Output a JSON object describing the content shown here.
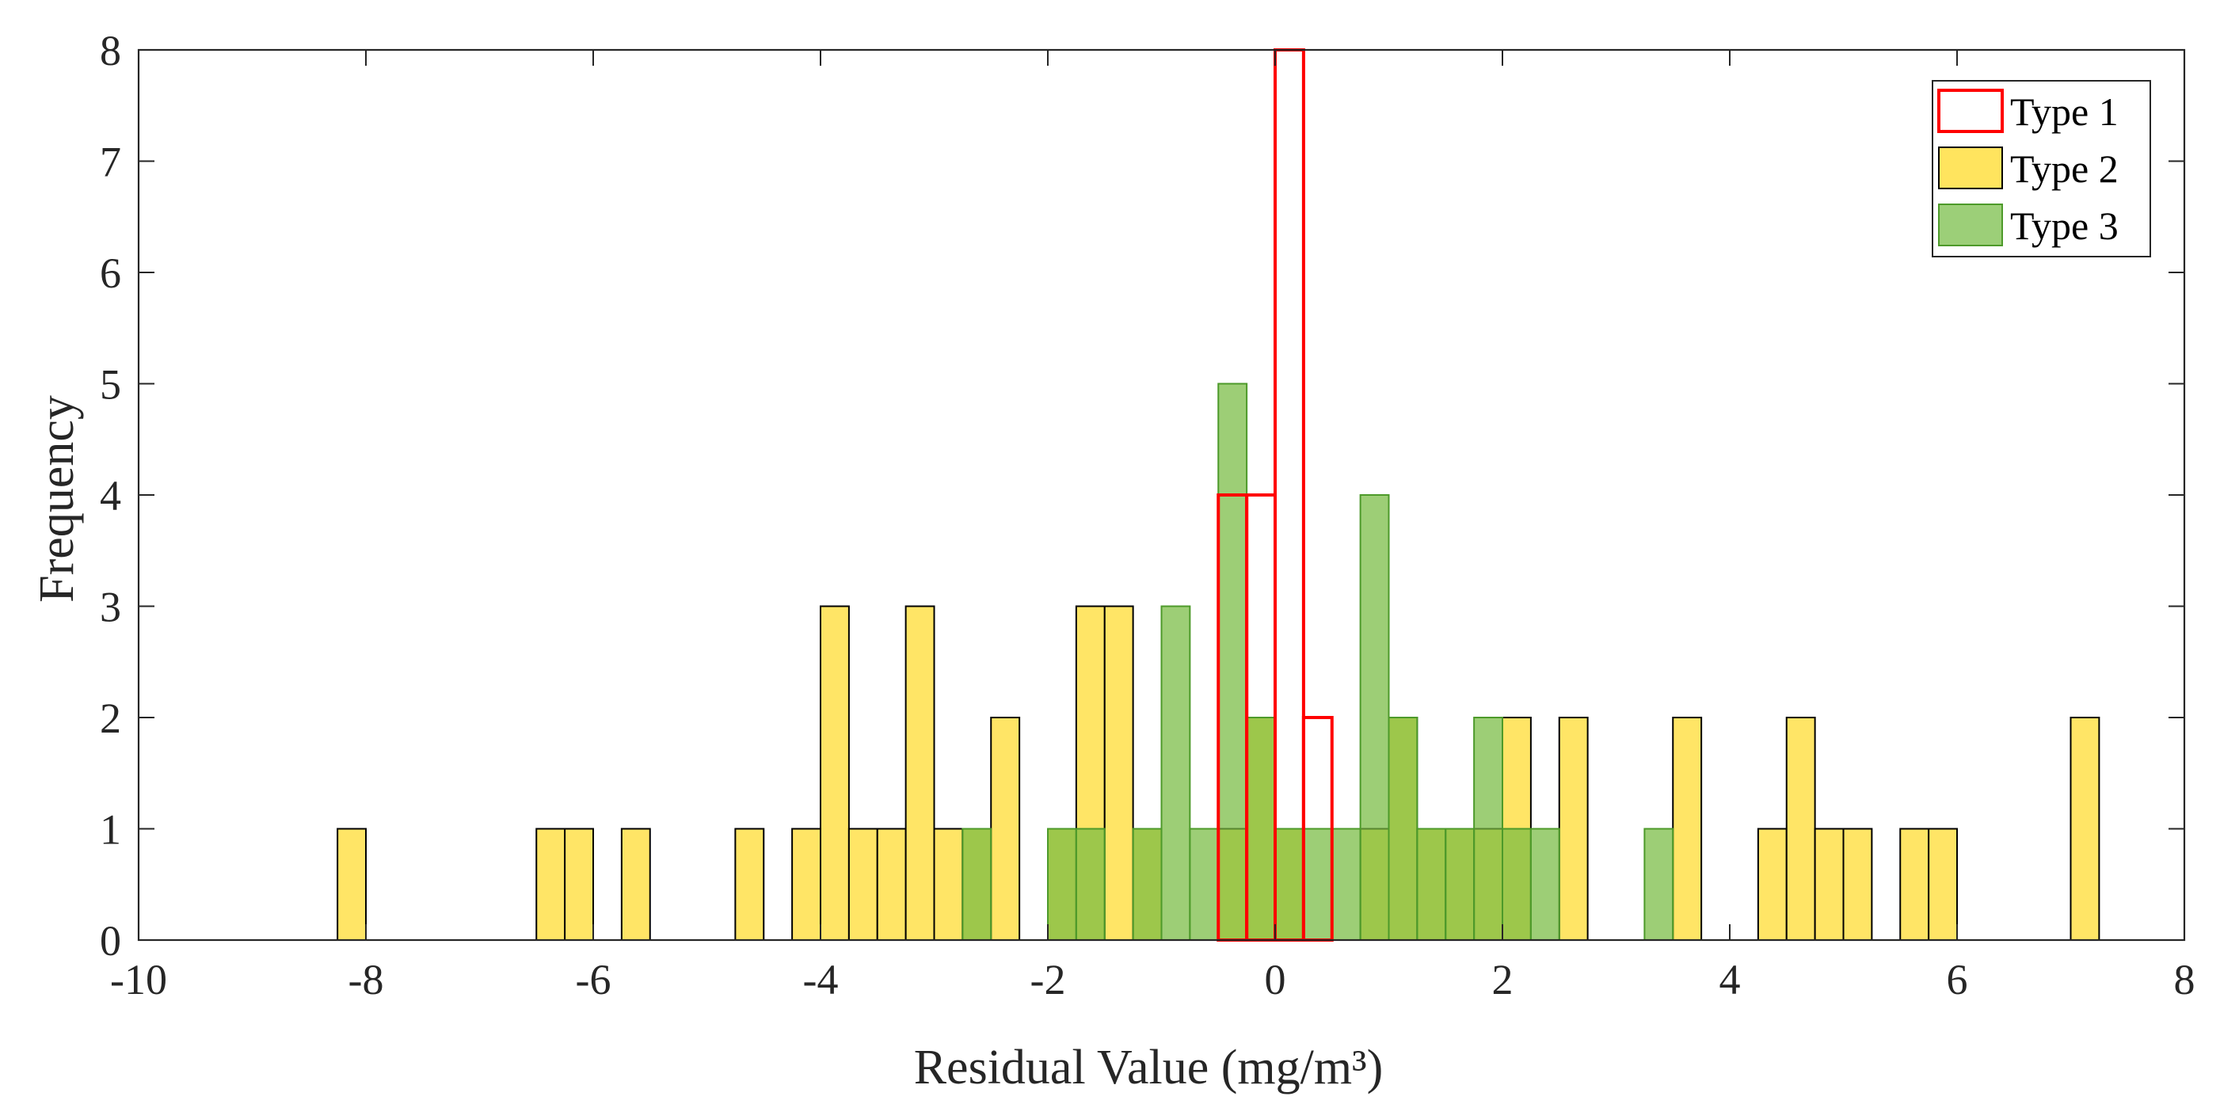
{
  "chart_data": {
    "type": "histogram",
    "title": "",
    "xlabel": "Residual Value (mg/m³)",
    "ylabel": "Frequency",
    "xlim": [
      -10,
      8
    ],
    "ylim": [
      0,
      8
    ],
    "xticks": [
      "-10",
      "-8",
      "-6",
      "-4",
      "-2",
      "0",
      "2",
      "4",
      "6",
      "8"
    ],
    "yticks": [
      "0",
      "1",
      "2",
      "3",
      "4",
      "5",
      "6",
      "7",
      "8"
    ],
    "grid": false,
    "legend_position": "top-right",
    "bin_width": 0.25,
    "series": [
      {
        "name": "Type 2",
        "fill": "#ffe45e",
        "stroke": "#000000",
        "fill_opacity": 0.95,
        "bins": [
          {
            "start": -8.25,
            "count": 1
          },
          {
            "start": -6.5,
            "count": 1
          },
          {
            "start": -6.25,
            "count": 1
          },
          {
            "start": -5.75,
            "count": 1
          },
          {
            "start": -4.75,
            "count": 1
          },
          {
            "start": -4.25,
            "count": 1
          },
          {
            "start": -4.0,
            "count": 3
          },
          {
            "start": -3.75,
            "count": 1
          },
          {
            "start": -3.5,
            "count": 1
          },
          {
            "start": -3.25,
            "count": 3
          },
          {
            "start": -3.0,
            "count": 1
          },
          {
            "start": -2.75,
            "count": 1
          },
          {
            "start": -2.5,
            "count": 2
          },
          {
            "start": -2.0,
            "count": 1
          },
          {
            "start": -1.75,
            "count": 3
          },
          {
            "start": -1.5,
            "count": 3
          },
          {
            "start": -1.25,
            "count": 1
          },
          {
            "start": -0.5,
            "count": 1
          },
          {
            "start": -0.25,
            "count": 2
          },
          {
            "start": 0.0,
            "count": 1
          },
          {
            "start": 0.75,
            "count": 1
          },
          {
            "start": 1.0,
            "count": 2
          },
          {
            "start": 1.25,
            "count": 1
          },
          {
            "start": 1.5,
            "count": 1
          },
          {
            "start": 1.75,
            "count": 1
          },
          {
            "start": 2.0,
            "count": 2
          },
          {
            "start": 2.5,
            "count": 2
          },
          {
            "start": 3.5,
            "count": 2
          },
          {
            "start": 4.25,
            "count": 1
          },
          {
            "start": 4.5,
            "count": 2
          },
          {
            "start": 4.75,
            "count": 1
          },
          {
            "start": 5.0,
            "count": 1
          },
          {
            "start": 5.5,
            "count": 1
          },
          {
            "start": 5.75,
            "count": 1
          },
          {
            "start": 7.0,
            "count": 2
          }
        ]
      },
      {
        "name": "Type 3",
        "fill": "#77bb41",
        "stroke": "#4d9a2a",
        "fill_opacity": 0.72,
        "bins": [
          {
            "start": -2.75,
            "count": 1
          },
          {
            "start": -2.0,
            "count": 1
          },
          {
            "start": -1.75,
            "count": 1
          },
          {
            "start": -1.25,
            "count": 1
          },
          {
            "start": -1.0,
            "count": 3
          },
          {
            "start": -0.75,
            "count": 1
          },
          {
            "start": -0.5,
            "count": 5
          },
          {
            "start": -0.25,
            "count": 2
          },
          {
            "start": 0.0,
            "count": 1
          },
          {
            "start": 0.25,
            "count": 1
          },
          {
            "start": 0.5,
            "count": 1
          },
          {
            "start": 0.75,
            "count": 4
          },
          {
            "start": 1.0,
            "count": 2
          },
          {
            "start": 1.25,
            "count": 1
          },
          {
            "start": 1.5,
            "count": 1
          },
          {
            "start": 1.75,
            "count": 2
          },
          {
            "start": 2.0,
            "count": 1
          },
          {
            "start": 2.25,
            "count": 1
          },
          {
            "start": 3.25,
            "count": 1
          }
        ]
      },
      {
        "name": "Type 1",
        "fill": "none",
        "stroke": "#ff0000",
        "fill_opacity": 0,
        "bins": [
          {
            "start": -0.5,
            "count": 4
          },
          {
            "start": -0.25,
            "count": 4
          },
          {
            "start": 0.0,
            "count": 8
          },
          {
            "start": 0.25,
            "count": 2
          }
        ]
      }
    ],
    "legend": [
      {
        "label": "Type 1",
        "fill": "none",
        "stroke": "#ff0000"
      },
      {
        "label": "Type 2",
        "fill": "#ffe45e",
        "stroke": "#000000"
      },
      {
        "label": "Type 3",
        "fill": "#9ccf78",
        "stroke": "#4d9a2a"
      }
    ]
  }
}
